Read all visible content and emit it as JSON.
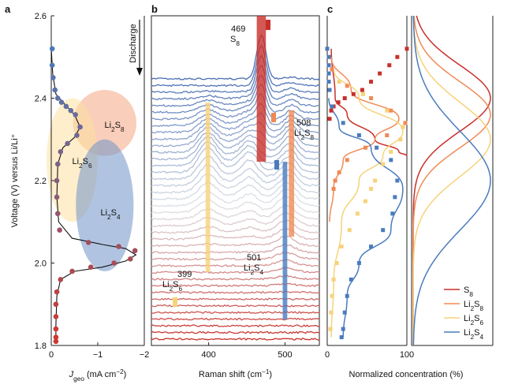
{
  "chart_data": [
    {
      "panel": "a",
      "type": "scatter",
      "title": "",
      "xlabel": "J_geo (mA cm⁻²)",
      "xlabel_parts": {
        "main": "J",
        "sub": "geo",
        "rest": " (mA cm",
        "sup": "−2",
        "close": ")"
      },
      "ylabel": "Voltage (V) versus Li/Li⁺",
      "xlim": [
        0,
        -2
      ],
      "ylim": [
        1.8,
        2.6
      ],
      "x_ticks": [
        0,
        -1,
        -2
      ],
      "x_tick_labels": [
        "0",
        "−1",
        "−2"
      ],
      "y_ticks": [
        1.8,
        2.0,
        2.2,
        2.4,
        2.6
      ],
      "y_tick_labels": [
        "1.8",
        "2.0",
        "2.2",
        "2.4",
        "2.6"
      ],
      "regions": [
        {
          "name": "Li2S8",
          "label_main": "Li",
          "label_sub1": "2",
          "label_mid": "S",
          "label_sub2": "8",
          "color": "#f4a582",
          "cx": -1.15,
          "cy": 2.34,
          "rx": 0.68,
          "ry": 0.08
        },
        {
          "name": "Li2S6",
          "label_main": "Li",
          "label_sub1": "2",
          "label_mid": "S",
          "label_sub2": "6",
          "color": "#fde0a0",
          "cx": -0.45,
          "cy": 2.25,
          "rx": 0.55,
          "ry": 0.15
        },
        {
          "name": "Li2S4",
          "label_main": "Li",
          "label_sub1": "2",
          "label_mid": "S",
          "label_sub2": "4",
          "color": "#6f94c8",
          "cx": -1.15,
          "cy": 2.14,
          "rx": 0.62,
          "ry": 0.16
        }
      ],
      "points": [
        {
          "j": -0.02,
          "v": 2.52
        },
        {
          "j": -0.02,
          "v": 2.48
        },
        {
          "j": -0.04,
          "v": 2.45
        },
        {
          "j": -0.08,
          "v": 2.42
        },
        {
          "j": -0.14,
          "v": 2.4
        },
        {
          "j": -0.22,
          "v": 2.39
        },
        {
          "j": -0.32,
          "v": 2.38
        },
        {
          "j": -0.42,
          "v": 2.37
        },
        {
          "j": -0.52,
          "v": 2.36
        },
        {
          "j": -0.62,
          "v": 2.33
        },
        {
          "j": -0.55,
          "v": 2.31
        },
        {
          "j": -0.35,
          "v": 2.29
        },
        {
          "j": -0.2,
          "v": 2.27
        },
        {
          "j": -0.14,
          "v": 2.24
        },
        {
          "j": -0.12,
          "v": 2.2
        },
        {
          "j": -0.12,
          "v": 2.16
        },
        {
          "j": -0.14,
          "v": 2.12
        },
        {
          "j": -0.18,
          "v": 2.08
        },
        {
          "j": -0.8,
          "v": 2.05
        },
        {
          "j": -1.45,
          "v": 2.04
        },
        {
          "j": -1.8,
          "v": 2.03
        },
        {
          "j": -1.7,
          "v": 2.01
        },
        {
          "j": -1.35,
          "v": 2.0
        },
        {
          "j": -0.85,
          "v": 1.99
        },
        {
          "j": -0.45,
          "v": 1.98
        },
        {
          "j": -0.2,
          "v": 1.96
        },
        {
          "j": -0.12,
          "v": 1.93
        },
        {
          "j": -0.1,
          "v": 1.9
        },
        {
          "j": -0.1,
          "v": 1.87
        },
        {
          "j": -0.1,
          "v": 1.84
        },
        {
          "j": -0.1,
          "v": 1.82
        },
        {
          "j": -0.1,
          "v": 1.81
        }
      ],
      "curve": [
        [
          0,
          2.52
        ],
        [
          -0.03,
          2.46
        ],
        [
          -0.1,
          2.41
        ],
        [
          -0.25,
          2.39
        ],
        [
          -0.5,
          2.36
        ],
        [
          -0.62,
          2.33
        ],
        [
          -0.5,
          2.305
        ],
        [
          -0.25,
          2.28
        ],
        [
          -0.14,
          2.24
        ],
        [
          -0.12,
          2.16
        ],
        [
          -0.16,
          2.1
        ],
        [
          -0.45,
          2.06
        ],
        [
          -1.1,
          2.045
        ],
        [
          -1.6,
          2.035
        ],
        [
          -1.82,
          2.02
        ],
        [
          -1.6,
          2.005
        ],
        [
          -1.1,
          1.99
        ],
        [
          -0.5,
          1.98
        ],
        [
          -0.2,
          1.96
        ],
        [
          -0.12,
          1.92
        ],
        [
          -0.1,
          1.85
        ],
        [
          -0.1,
          1.81
        ]
      ]
    },
    {
      "panel": "b",
      "type": "line",
      "title": "",
      "xlabel": "Raman shift (cm⁻¹)",
      "xlabel_parts": {
        "main": "Raman shift (cm",
        "sup": "−1",
        "close": ")"
      },
      "ylabel": "",
      "xlim": [
        325,
        545
      ],
      "x_ticks": [
        400,
        500
      ],
      "x_tick_labels": [
        "400",
        "500"
      ],
      "discharge_label": "Discharge",
      "n_spectra": 40,
      "peaks": [
        {
          "name": "S8",
          "shift": 469,
          "label_num": "469",
          "label_main": "S",
          "label_sub": "8",
          "color": "#c8302a"
        },
        {
          "name": "Li2S8",
          "shift": 508,
          "label_num": "508",
          "label_main": "Li",
          "label_sub1": "2",
          "label_mid": "S",
          "label_sub2": "8",
          "color": "#f08a55"
        },
        {
          "name": "Li2S4",
          "shift": 501,
          "label_num": "501",
          "label_main": "Li",
          "label_sub1": "2",
          "label_mid": "S",
          "label_sub2": "4",
          "color": "#4a7bbd"
        },
        {
          "name": "Li2S6",
          "shift": 399,
          "label_num": "399",
          "label_main": "Li",
          "label_sub1": "2",
          "label_mid": "S",
          "label_sub2": "6",
          "color": "#f7d27a"
        }
      ]
    },
    {
      "panel": "c",
      "type": "line",
      "title": "",
      "xlabel": "Normalized concentration (%)",
      "ylabel": "",
      "xlim": [
        0,
        100
      ],
      "x_ticks": [
        0,
        100
      ],
      "x_tick_labels": [
        "0",
        "100"
      ],
      "series": [
        {
          "name": "S8",
          "label_main": "S",
          "label_sub": "8",
          "color": "#c8302a",
          "fit": [
            [
              5,
              2.52
            ],
            [
              10,
              2.4
            ],
            [
              25,
              2.36
            ],
            [
              60,
              2.3
            ],
            [
              90,
              2.27
            ],
            [
              100,
              2.26
            ]
          ],
          "points": [
            [
              100,
              2.52
            ],
            [
              88,
              2.5
            ],
            [
              78,
              2.48
            ],
            [
              66,
              2.46
            ],
            [
              55,
              2.44
            ],
            [
              44,
              2.42
            ],
            [
              33,
              2.41
            ],
            [
              22,
              2.4
            ],
            [
              14,
              2.39
            ],
            [
              8,
              2.38
            ],
            [
              5,
              2.37
            ],
            [
              3,
              2.35
            ]
          ]
        },
        {
          "name": "Li2S8",
          "label_main": "Li",
          "label_sub1": "2",
          "label_mid": "S",
          "label_sub2": "8",
          "color": "#f08a55",
          "fit": [
            [
              5,
              2.5
            ],
            [
              30,
              2.42
            ],
            [
              90,
              2.35
            ],
            [
              60,
              2.3
            ],
            [
              20,
              2.25
            ],
            [
              8,
              2.18
            ],
            [
              3,
              2.1
            ]
          ],
          "points": [
            [
              6,
              2.47
            ],
            [
              25,
              2.43
            ],
            [
              55,
              2.4
            ],
            [
              80,
              2.37
            ],
            [
              98,
              2.34
            ],
            [
              75,
              2.31
            ],
            [
              48,
              2.28
            ],
            [
              25,
              2.25
            ],
            [
              15,
              2.22
            ],
            [
              10,
              2.2
            ],
            [
              8,
              2.18
            ]
          ]
        },
        {
          "name": "Li2S6",
          "label_main": "Li",
          "label_sub1": "2",
          "label_mid": "S",
          "label_sub2": "6",
          "color": "#f7d27a",
          "fit": [
            [
              8,
              2.47
            ],
            [
              40,
              2.4
            ],
            [
              95,
              2.32
            ],
            [
              70,
              2.26
            ],
            [
              40,
              2.2
            ],
            [
              18,
              2.1
            ],
            [
              8,
              1.95
            ],
            [
              5,
              1.82
            ]
          ],
          "points": [
            [
              15,
              2.44
            ],
            [
              45,
              2.41
            ],
            [
              75,
              2.37
            ],
            [
              95,
              2.33
            ],
            [
              92,
              2.3
            ],
            [
              80,
              2.27
            ],
            [
              70,
              2.24
            ],
            [
              60,
              2.2
            ],
            [
              55,
              2.18
            ],
            [
              48,
              2.15
            ],
            [
              38,
              2.12
            ],
            [
              28,
              2.08
            ],
            [
              18,
              2.04
            ],
            [
              12,
              2.0
            ],
            [
              8,
              1.96
            ],
            [
              6,
              1.92
            ],
            [
              5,
              1.88
            ],
            [
              4,
              1.84
            ]
          ]
        },
        {
          "name": "Li2S4",
          "label_main": "Li",
          "label_sub1": "2",
          "label_mid": "S",
          "label_sub2": "4",
          "color": "#4a7bbd",
          "fit": [
            [
              2,
              2.4
            ],
            [
              15,
              2.33
            ],
            [
              55,
              2.28
            ],
            [
              95,
              2.18
            ],
            [
              80,
              2.08
            ],
            [
              40,
              2.0
            ],
            [
              25,
              1.92
            ],
            [
              20,
              1.82
            ]
          ],
          "points": [
            [
              0,
              2.52
            ],
            [
              2,
              2.5
            ],
            [
              2,
              2.48
            ],
            [
              2,
              2.46
            ],
            [
              2,
              2.44
            ],
            [
              3,
              2.42
            ],
            [
              6,
              2.38
            ],
            [
              20,
              2.34
            ],
            [
              40,
              2.31
            ],
            [
              62,
              2.28
            ],
            [
              80,
              2.25
            ],
            [
              88,
              2.2
            ],
            [
              85,
              2.16
            ],
            [
              82,
              2.12
            ],
            [
              70,
              2.08
            ],
            [
              55,
              2.04
            ],
            [
              40,
              2.0
            ],
            [
              30,
              1.96
            ],
            [
              25,
              1.92
            ],
            [
              22,
              1.88
            ],
            [
              20,
              1.84
            ],
            [
              18,
              1.82
            ]
          ]
        }
      ],
      "distribution_curves": [
        {
          "name": "S8",
          "color": "#c8302a",
          "center": 2.4,
          "width": 0.08
        },
        {
          "name": "Li2S8",
          "color": "#f08a55",
          "center": 2.36,
          "width": 0.08
        },
        {
          "name": "Li2S6",
          "color": "#f7d27a",
          "center": 2.3,
          "width": 0.09
        },
        {
          "name": "Li2S4",
          "color": "#4a7bbd",
          "center": 2.2,
          "width": 0.12
        }
      ],
      "legend": "bottom-right"
    }
  ],
  "panel_labels": [
    "a",
    "b",
    "c"
  ]
}
